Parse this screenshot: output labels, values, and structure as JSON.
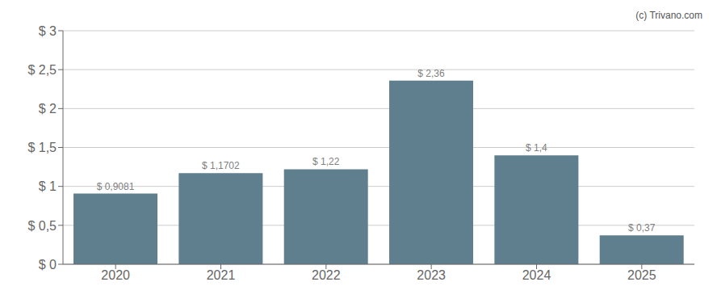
{
  "chart_data": {
    "type": "bar",
    "categories": [
      "2020",
      "2021",
      "2022",
      "2023",
      "2024",
      "2025"
    ],
    "values": [
      0.9081,
      1.1702,
      1.22,
      2.36,
      1.4,
      0.37
    ],
    "value_labels": [
      "$ 0,9081",
      "$ 1,1702",
      "$ 1,22",
      "$ 2,36",
      "$ 1,4",
      "$ 0,37"
    ],
    "data_labels": true,
    "color": "#5f7f8e",
    "ylim": [
      0,
      3.0
    ],
    "yticks": [
      {
        "value": 0,
        "label": "$ 0"
      },
      {
        "value": 0.5,
        "label": "$ 0,5"
      },
      {
        "value": 1.0,
        "label": "$ 1"
      },
      {
        "value": 1.5,
        "label": "$ 1,5"
      },
      {
        "value": 2.0,
        "label": "$ 2"
      },
      {
        "value": 2.5,
        "label": "$ 2,5"
      },
      {
        "value": 3.0,
        "label": "$ 3"
      }
    ],
    "grid": true,
    "annotations": [
      "(c) Trivano.com"
    ]
  }
}
